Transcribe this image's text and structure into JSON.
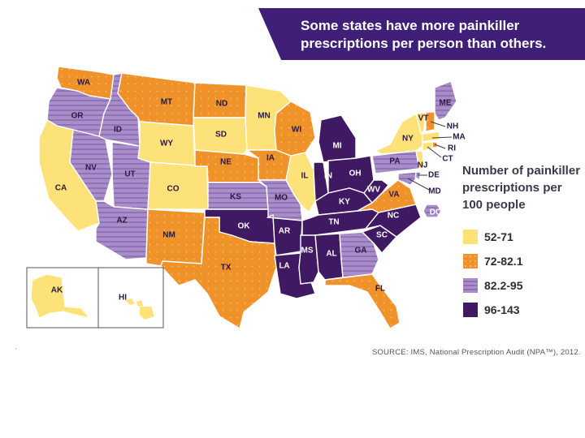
{
  "title": {
    "line1": "Some states have more painkiller",
    "line2": "prescriptions per person than others."
  },
  "legend": {
    "title_lines": [
      "Number of painkiller",
      "prescriptions per",
      "100 people"
    ],
    "items": [
      {
        "label": "52-71",
        "color": "#fde27a",
        "pattern": "solid"
      },
      {
        "label": "72-82.1",
        "color": "#f0922a",
        "pattern": "dots"
      },
      {
        "label": "82.2-95",
        "color": "#a88dc9",
        "pattern": "stripes"
      },
      {
        "label": "96-143",
        "color": "#3f1a63",
        "pattern": "solid"
      }
    ]
  },
  "states": [
    {
      "abbr": "WA",
      "category": "72-82.1"
    },
    {
      "abbr": "OR",
      "category": "82.2-95"
    },
    {
      "abbr": "CA",
      "category": "52-71"
    },
    {
      "abbr": "ID",
      "category": "82.2-95"
    },
    {
      "abbr": "NV",
      "category": "82.2-95"
    },
    {
      "abbr": "UT",
      "category": "82.2-95"
    },
    {
      "abbr": "AZ",
      "category": "82.2-95"
    },
    {
      "abbr": "MT",
      "category": "72-82.1"
    },
    {
      "abbr": "WY",
      "category": "52-71"
    },
    {
      "abbr": "CO",
      "category": "52-71"
    },
    {
      "abbr": "NM",
      "category": "72-82.1"
    },
    {
      "abbr": "ND",
      "category": "72-82.1"
    },
    {
      "abbr": "SD",
      "category": "52-71"
    },
    {
      "abbr": "NE",
      "category": "72-82.1"
    },
    {
      "abbr": "KS",
      "category": "82.2-95"
    },
    {
      "abbr": "OK",
      "category": "96-143"
    },
    {
      "abbr": "TX",
      "category": "72-82.1"
    },
    {
      "abbr": "MN",
      "category": "52-71"
    },
    {
      "abbr": "IA",
      "category": "72-82.1"
    },
    {
      "abbr": "MO",
      "category": "82.2-95"
    },
    {
      "abbr": "AR",
      "category": "96-143"
    },
    {
      "abbr": "LA",
      "category": "96-143"
    },
    {
      "abbr": "WI",
      "category": "72-82.1"
    },
    {
      "abbr": "IL",
      "category": "52-71"
    },
    {
      "abbr": "MI",
      "category": "96-143"
    },
    {
      "abbr": "IN",
      "category": "96-143"
    },
    {
      "abbr": "OH",
      "category": "96-143"
    },
    {
      "abbr": "KY",
      "category": "96-143"
    },
    {
      "abbr": "TN",
      "category": "96-143"
    },
    {
      "abbr": "MS",
      "category": "96-143"
    },
    {
      "abbr": "AL",
      "category": "96-143"
    },
    {
      "abbr": "GA",
      "category": "82.2-95"
    },
    {
      "abbr": "FL",
      "category": "72-82.1"
    },
    {
      "abbr": "SC",
      "category": "96-143"
    },
    {
      "abbr": "NC",
      "category": "96-143"
    },
    {
      "abbr": "VA",
      "category": "72-82.1"
    },
    {
      "abbr": "WV",
      "category": "96-143"
    },
    {
      "abbr": "PA",
      "category": "82.2-95"
    },
    {
      "abbr": "NY",
      "category": "52-71"
    },
    {
      "abbr": "VT",
      "category": "52-71"
    },
    {
      "abbr": "ME",
      "category": "82.2-95"
    },
    {
      "abbr": "NH",
      "category": "72-82.1"
    },
    {
      "abbr": "MA",
      "category": "52-71"
    },
    {
      "abbr": "RI",
      "category": "72-82.1"
    },
    {
      "abbr": "CT",
      "category": "52-71"
    },
    {
      "abbr": "NJ",
      "category": "52-71"
    },
    {
      "abbr": "DE",
      "category": "82.2-95"
    },
    {
      "abbr": "MD",
      "category": "82.2-95"
    },
    {
      "abbr": "DC",
      "category": "82.2-95"
    },
    {
      "abbr": "AK",
      "category": "52-71"
    },
    {
      "abbr": "HI",
      "category": "52-71"
    }
  ],
  "source": "SOURCE: IMS, National Prescription Audit (NPA™), 2012.",
  "stray_mark": "'"
}
